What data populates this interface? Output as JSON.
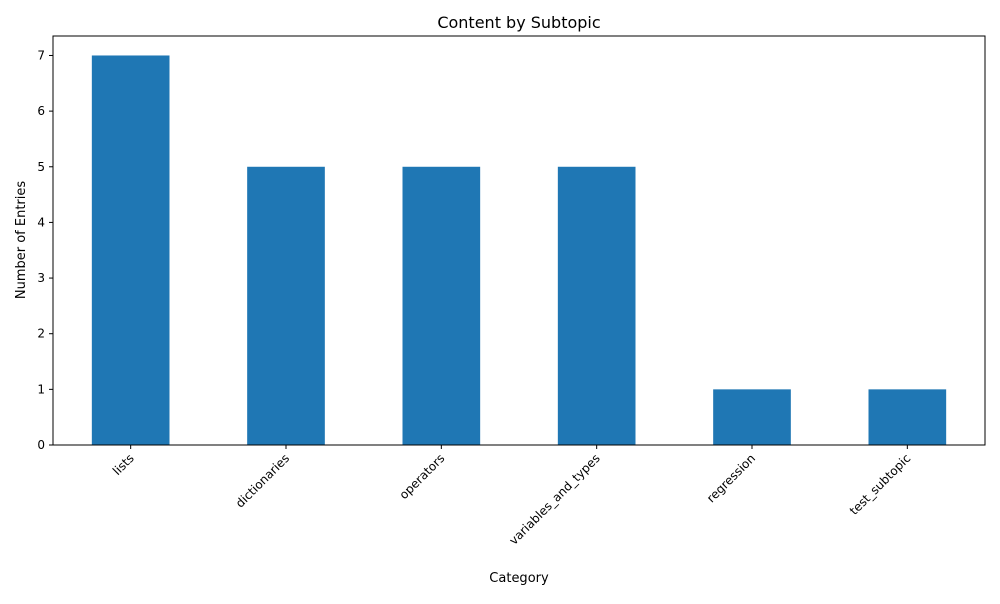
{
  "chart_data": {
    "type": "bar",
    "title": "Content by Subtopic",
    "xlabel": "Category",
    "ylabel": "Number of Entries",
    "categories": [
      "lists",
      "dictionaries",
      "operators",
      "variables_and_types",
      "regression",
      "test_subtopic"
    ],
    "values": [
      7,
      5,
      5,
      5,
      1,
      1
    ],
    "ylim": [
      0,
      7.35
    ],
    "yticks": [
      0,
      1,
      2,
      3,
      4,
      5,
      6,
      7
    ],
    "grid": false,
    "legend": "none",
    "bar_color": "#1f77b4",
    "xtick_rotation": 45
  }
}
